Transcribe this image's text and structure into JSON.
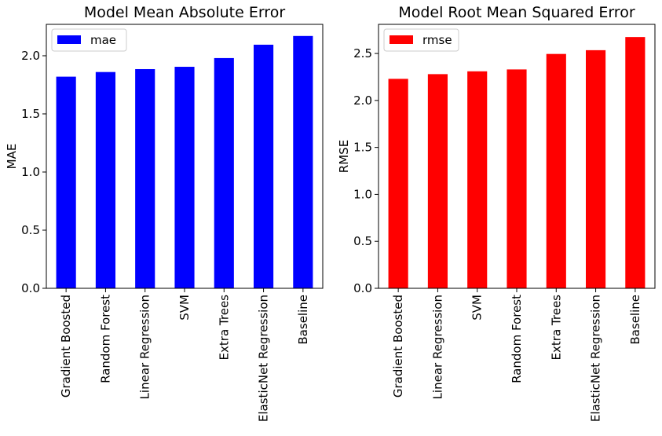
{
  "chart_data": [
    {
      "type": "bar",
      "title": "Model Mean Absolute Error",
      "xlabel": "",
      "ylabel": "MAE",
      "categories": [
        "Gradient Boosted",
        "Random Forest",
        "Linear Regression",
        "SVM",
        "Extra Trees",
        "ElasticNet Regression",
        "Baseline"
      ],
      "series": [
        {
          "name": "mae",
          "color": "#0000ff",
          "values": [
            1.82,
            1.86,
            1.885,
            1.905,
            1.98,
            2.095,
            2.17
          ]
        }
      ],
      "ylim": [
        0,
        2.27
      ],
      "yticks": [
        0.0,
        0.5,
        1.0,
        1.5,
        2.0
      ],
      "ytick_labels": [
        "0.0",
        "0.5",
        "1.0",
        "1.5",
        "2.0"
      ],
      "grid": false,
      "legend": "top-left"
    },
    {
      "type": "bar",
      "title": "Model Root Mean Squared Error",
      "xlabel": "",
      "ylabel": "RMSE",
      "categories": [
        "Gradient Boosted",
        "Linear Regression",
        "SVM",
        "Random Forest",
        "Extra Trees",
        "ElasticNet Regression",
        "Baseline"
      ],
      "series": [
        {
          "name": "rmse",
          "color": "#ff0000",
          "values": [
            2.23,
            2.28,
            2.31,
            2.33,
            2.495,
            2.535,
            2.675
          ]
        }
      ],
      "ylim": [
        0,
        2.81
      ],
      "yticks": [
        0.0,
        0.5,
        1.0,
        1.5,
        2.0,
        2.5
      ],
      "ytick_labels": [
        "0.0",
        "0.5",
        "1.0",
        "1.5",
        "2.0",
        "2.5"
      ],
      "grid": false,
      "legend": "top-left"
    }
  ]
}
